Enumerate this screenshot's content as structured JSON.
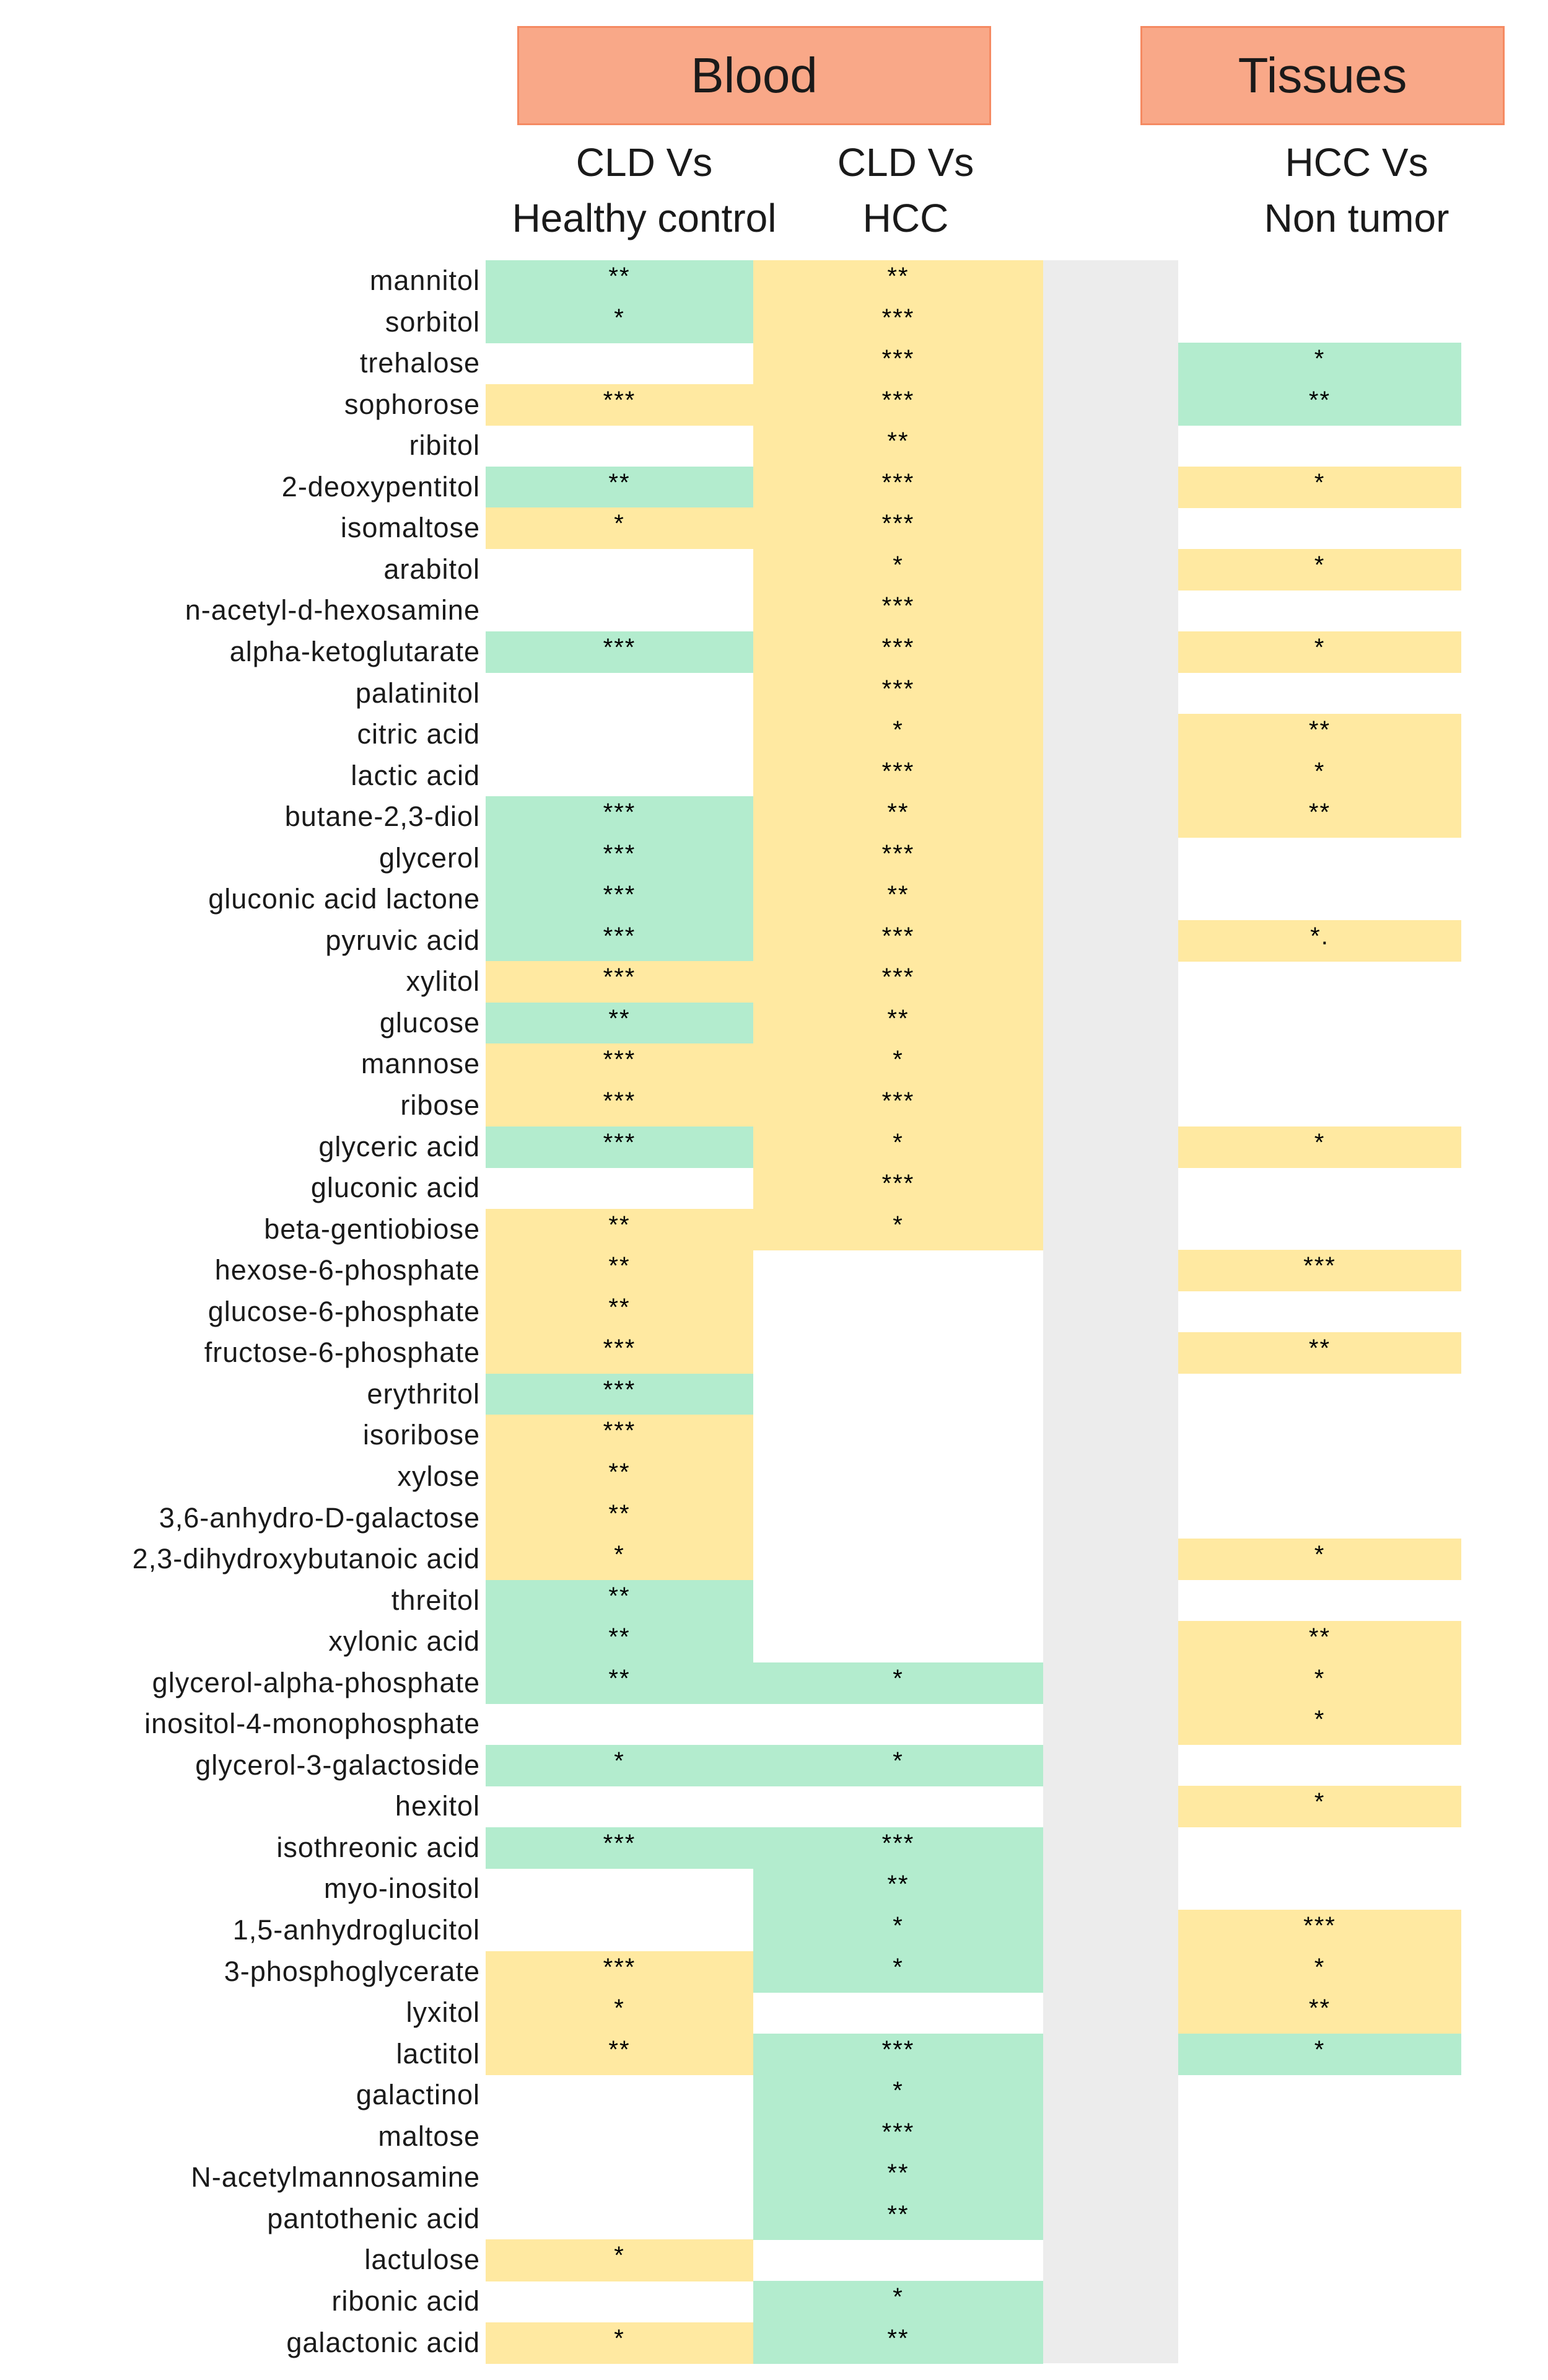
{
  "groups": {
    "blood": "Blood",
    "tissues": "Tissues"
  },
  "columns": [
    {
      "id": "cld_vs_healthy",
      "line1": "CLD Vs",
      "line2": "Healthy control"
    },
    {
      "id": "cld_vs_hcc",
      "line1": "CLD Vs",
      "line2": "HCC"
    },
    {
      "id": "hcc_vs_nontumor",
      "line1": "HCC Vs",
      "line2": "Non tumor"
    }
  ],
  "colors": {
    "green": "#b3ecce",
    "yellow": "#ffe9a1",
    "header_fill": "#f9a888",
    "header_border": "#f58a62",
    "gray_band": "#ececec"
  },
  "chart_data": {
    "type": "table",
    "title": "",
    "legend_note": "g = green cell, y = yellow cell, n = no fill; text = significance stars",
    "columns": [
      "CLD Vs Healthy control",
      "CLD Vs HCC",
      "HCC Vs Non tumor"
    ],
    "rows": [
      {
        "name": "mannitol",
        "cells": [
          [
            "g",
            "**"
          ],
          [
            "y",
            "**"
          ],
          [
            "n",
            ""
          ]
        ]
      },
      {
        "name": "sorbitol",
        "cells": [
          [
            "g",
            "*"
          ],
          [
            "y",
            "***"
          ],
          [
            "n",
            ""
          ]
        ]
      },
      {
        "name": "trehalose",
        "cells": [
          [
            "n",
            ""
          ],
          [
            "y",
            "***"
          ],
          [
            "g",
            "*"
          ]
        ]
      },
      {
        "name": "sophorose",
        "cells": [
          [
            "y",
            "***"
          ],
          [
            "y",
            "***"
          ],
          [
            "g",
            "**"
          ]
        ]
      },
      {
        "name": "ribitol",
        "cells": [
          [
            "n",
            ""
          ],
          [
            "y",
            "**"
          ],
          [
            "n",
            ""
          ]
        ]
      },
      {
        "name": "2-deoxypentitol",
        "cells": [
          [
            "g",
            "**"
          ],
          [
            "y",
            "***"
          ],
          [
            "y",
            "*"
          ]
        ]
      },
      {
        "name": "isomaltose",
        "cells": [
          [
            "y",
            "*"
          ],
          [
            "y",
            "***"
          ],
          [
            "n",
            ""
          ]
        ]
      },
      {
        "name": "arabitol",
        "cells": [
          [
            "n",
            ""
          ],
          [
            "y",
            "*"
          ],
          [
            "y",
            "*"
          ]
        ]
      },
      {
        "name": "n-acetyl-d-hexosamine",
        "cells": [
          [
            "n",
            ""
          ],
          [
            "y",
            "***"
          ],
          [
            "n",
            ""
          ]
        ]
      },
      {
        "name": "alpha-ketoglutarate",
        "cells": [
          [
            "g",
            "***"
          ],
          [
            "y",
            "***"
          ],
          [
            "y",
            "*"
          ]
        ]
      },
      {
        "name": "palatinitol",
        "cells": [
          [
            "n",
            ""
          ],
          [
            "y",
            "***"
          ],
          [
            "n",
            ""
          ]
        ]
      },
      {
        "name": "citric acid",
        "cells": [
          [
            "n",
            ""
          ],
          [
            "y",
            "*"
          ],
          [
            "y",
            "**"
          ]
        ]
      },
      {
        "name": "lactic acid",
        "cells": [
          [
            "n",
            ""
          ],
          [
            "y",
            "***"
          ],
          [
            "y",
            "*"
          ]
        ]
      },
      {
        "name": "butane-2,3-diol",
        "cells": [
          [
            "g",
            "***"
          ],
          [
            "y",
            "**"
          ],
          [
            "y",
            "**"
          ]
        ]
      },
      {
        "name": "glycerol",
        "cells": [
          [
            "g",
            "***"
          ],
          [
            "y",
            "***"
          ],
          [
            "n",
            ""
          ]
        ]
      },
      {
        "name": "gluconic acid lactone",
        "cells": [
          [
            "g",
            "***"
          ],
          [
            "y",
            "**"
          ],
          [
            "n",
            ""
          ]
        ]
      },
      {
        "name": "pyruvic acid",
        "cells": [
          [
            "g",
            "***"
          ],
          [
            "y",
            "***"
          ],
          [
            "y",
            "*."
          ]
        ]
      },
      {
        "name": "xylitol",
        "cells": [
          [
            "y",
            "***"
          ],
          [
            "y",
            "***"
          ],
          [
            "n",
            ""
          ]
        ]
      },
      {
        "name": "glucose",
        "cells": [
          [
            "g",
            "**"
          ],
          [
            "y",
            "**"
          ],
          [
            "n",
            ""
          ]
        ]
      },
      {
        "name": "mannose",
        "cells": [
          [
            "y",
            "***"
          ],
          [
            "y",
            "*"
          ],
          [
            "n",
            ""
          ]
        ]
      },
      {
        "name": "ribose",
        "cells": [
          [
            "y",
            "***"
          ],
          [
            "y",
            "***"
          ],
          [
            "n",
            ""
          ]
        ]
      },
      {
        "name": "glyceric acid",
        "cells": [
          [
            "g",
            "***"
          ],
          [
            "y",
            "*"
          ],
          [
            "y",
            "*"
          ]
        ]
      },
      {
        "name": "gluconic acid",
        "cells": [
          [
            "n",
            ""
          ],
          [
            "y",
            "***"
          ],
          [
            "n",
            ""
          ]
        ]
      },
      {
        "name": "beta-gentiobiose",
        "cells": [
          [
            "y",
            "**"
          ],
          [
            "y",
            "*"
          ],
          [
            "n",
            ""
          ]
        ]
      },
      {
        "name": "hexose-6-phosphate",
        "cells": [
          [
            "y",
            "**"
          ],
          [
            "n",
            ""
          ],
          [
            "y",
            "***"
          ]
        ]
      },
      {
        "name": "glucose-6-phosphate",
        "cells": [
          [
            "y",
            "**"
          ],
          [
            "n",
            ""
          ],
          [
            "n",
            ""
          ]
        ]
      },
      {
        "name": "fructose-6-phosphate",
        "cells": [
          [
            "y",
            "***"
          ],
          [
            "n",
            ""
          ],
          [
            "y",
            "**"
          ]
        ]
      },
      {
        "name": "erythritol",
        "cells": [
          [
            "g",
            "***"
          ],
          [
            "n",
            ""
          ],
          [
            "n",
            ""
          ]
        ]
      },
      {
        "name": "isoribose",
        "cells": [
          [
            "y",
            "***"
          ],
          [
            "n",
            ""
          ],
          [
            "n",
            ""
          ]
        ]
      },
      {
        "name": "xylose",
        "cells": [
          [
            "y",
            "**"
          ],
          [
            "n",
            ""
          ],
          [
            "n",
            ""
          ]
        ]
      },
      {
        "name": "3,6-anhydro-D-galactose",
        "cells": [
          [
            "y",
            "**"
          ],
          [
            "n",
            ""
          ],
          [
            "n",
            ""
          ]
        ]
      },
      {
        "name": "2,3-dihydroxybutanoic acid",
        "cells": [
          [
            "y",
            "*"
          ],
          [
            "n",
            ""
          ],
          [
            "y",
            "*"
          ]
        ]
      },
      {
        "name": "threitol",
        "cells": [
          [
            "g",
            "**"
          ],
          [
            "n",
            ""
          ],
          [
            "n",
            ""
          ]
        ]
      },
      {
        "name": "xylonic acid",
        "cells": [
          [
            "g",
            "**"
          ],
          [
            "n",
            ""
          ],
          [
            "y",
            "**"
          ]
        ]
      },
      {
        "name": "glycerol-alpha-phosphate",
        "cells": [
          [
            "g",
            "**"
          ],
          [
            "g",
            "*"
          ],
          [
            "y",
            "*"
          ]
        ]
      },
      {
        "name": "inositol-4-monophosphate",
        "cells": [
          [
            "n",
            ""
          ],
          [
            "n",
            ""
          ],
          [
            "y",
            "*"
          ]
        ]
      },
      {
        "name": "glycerol-3-galactoside",
        "cells": [
          [
            "g",
            "*"
          ],
          [
            "g",
            "*"
          ],
          [
            "n",
            ""
          ]
        ]
      },
      {
        "name": "hexitol",
        "cells": [
          [
            "n",
            ""
          ],
          [
            "n",
            ""
          ],
          [
            "y",
            "*"
          ]
        ]
      },
      {
        "name": "isothreonic acid",
        "cells": [
          [
            "g",
            "***"
          ],
          [
            "g",
            "***"
          ],
          [
            "n",
            ""
          ]
        ]
      },
      {
        "name": "myo-inositol",
        "cells": [
          [
            "n",
            ""
          ],
          [
            "g",
            "**"
          ],
          [
            "n",
            ""
          ]
        ]
      },
      {
        "name": "1,5-anhydroglucitol",
        "cells": [
          [
            "n",
            ""
          ],
          [
            "g",
            "*"
          ],
          [
            "y",
            "***"
          ]
        ]
      },
      {
        "name": "3-phosphoglycerate",
        "cells": [
          [
            "y",
            "***"
          ],
          [
            "g",
            "*"
          ],
          [
            "y",
            "*"
          ]
        ]
      },
      {
        "name": "lyxitol",
        "cells": [
          [
            "y",
            "*"
          ],
          [
            "n",
            ""
          ],
          [
            "y",
            "**"
          ]
        ]
      },
      {
        "name": "lactitol",
        "cells": [
          [
            "y",
            "**"
          ],
          [
            "g",
            "***"
          ],
          [
            "g",
            "*"
          ]
        ]
      },
      {
        "name": "galactinol",
        "cells": [
          [
            "n",
            ""
          ],
          [
            "g",
            "*"
          ],
          [
            "n",
            ""
          ]
        ]
      },
      {
        "name": "maltose",
        "cells": [
          [
            "n",
            ""
          ],
          [
            "g",
            "***"
          ],
          [
            "n",
            ""
          ]
        ]
      },
      {
        "name": "N-acetylmannosamine",
        "cells": [
          [
            "n",
            ""
          ],
          [
            "g",
            "**"
          ],
          [
            "n",
            ""
          ]
        ]
      },
      {
        "name": "pantothenic acid",
        "cells": [
          [
            "n",
            ""
          ],
          [
            "g",
            "**"
          ],
          [
            "n",
            ""
          ]
        ]
      },
      {
        "name": "lactulose",
        "cells": [
          [
            "y",
            "*"
          ],
          [
            "n",
            ""
          ],
          [
            "n",
            ""
          ]
        ]
      },
      {
        "name": "ribonic acid",
        "cells": [
          [
            "n",
            ""
          ],
          [
            "g",
            "*"
          ],
          [
            "n",
            ""
          ]
        ]
      },
      {
        "name": "galactonic acid",
        "cells": [
          [
            "y",
            "*"
          ],
          [
            "g",
            "**"
          ],
          [
            "n",
            ""
          ]
        ]
      }
    ]
  }
}
